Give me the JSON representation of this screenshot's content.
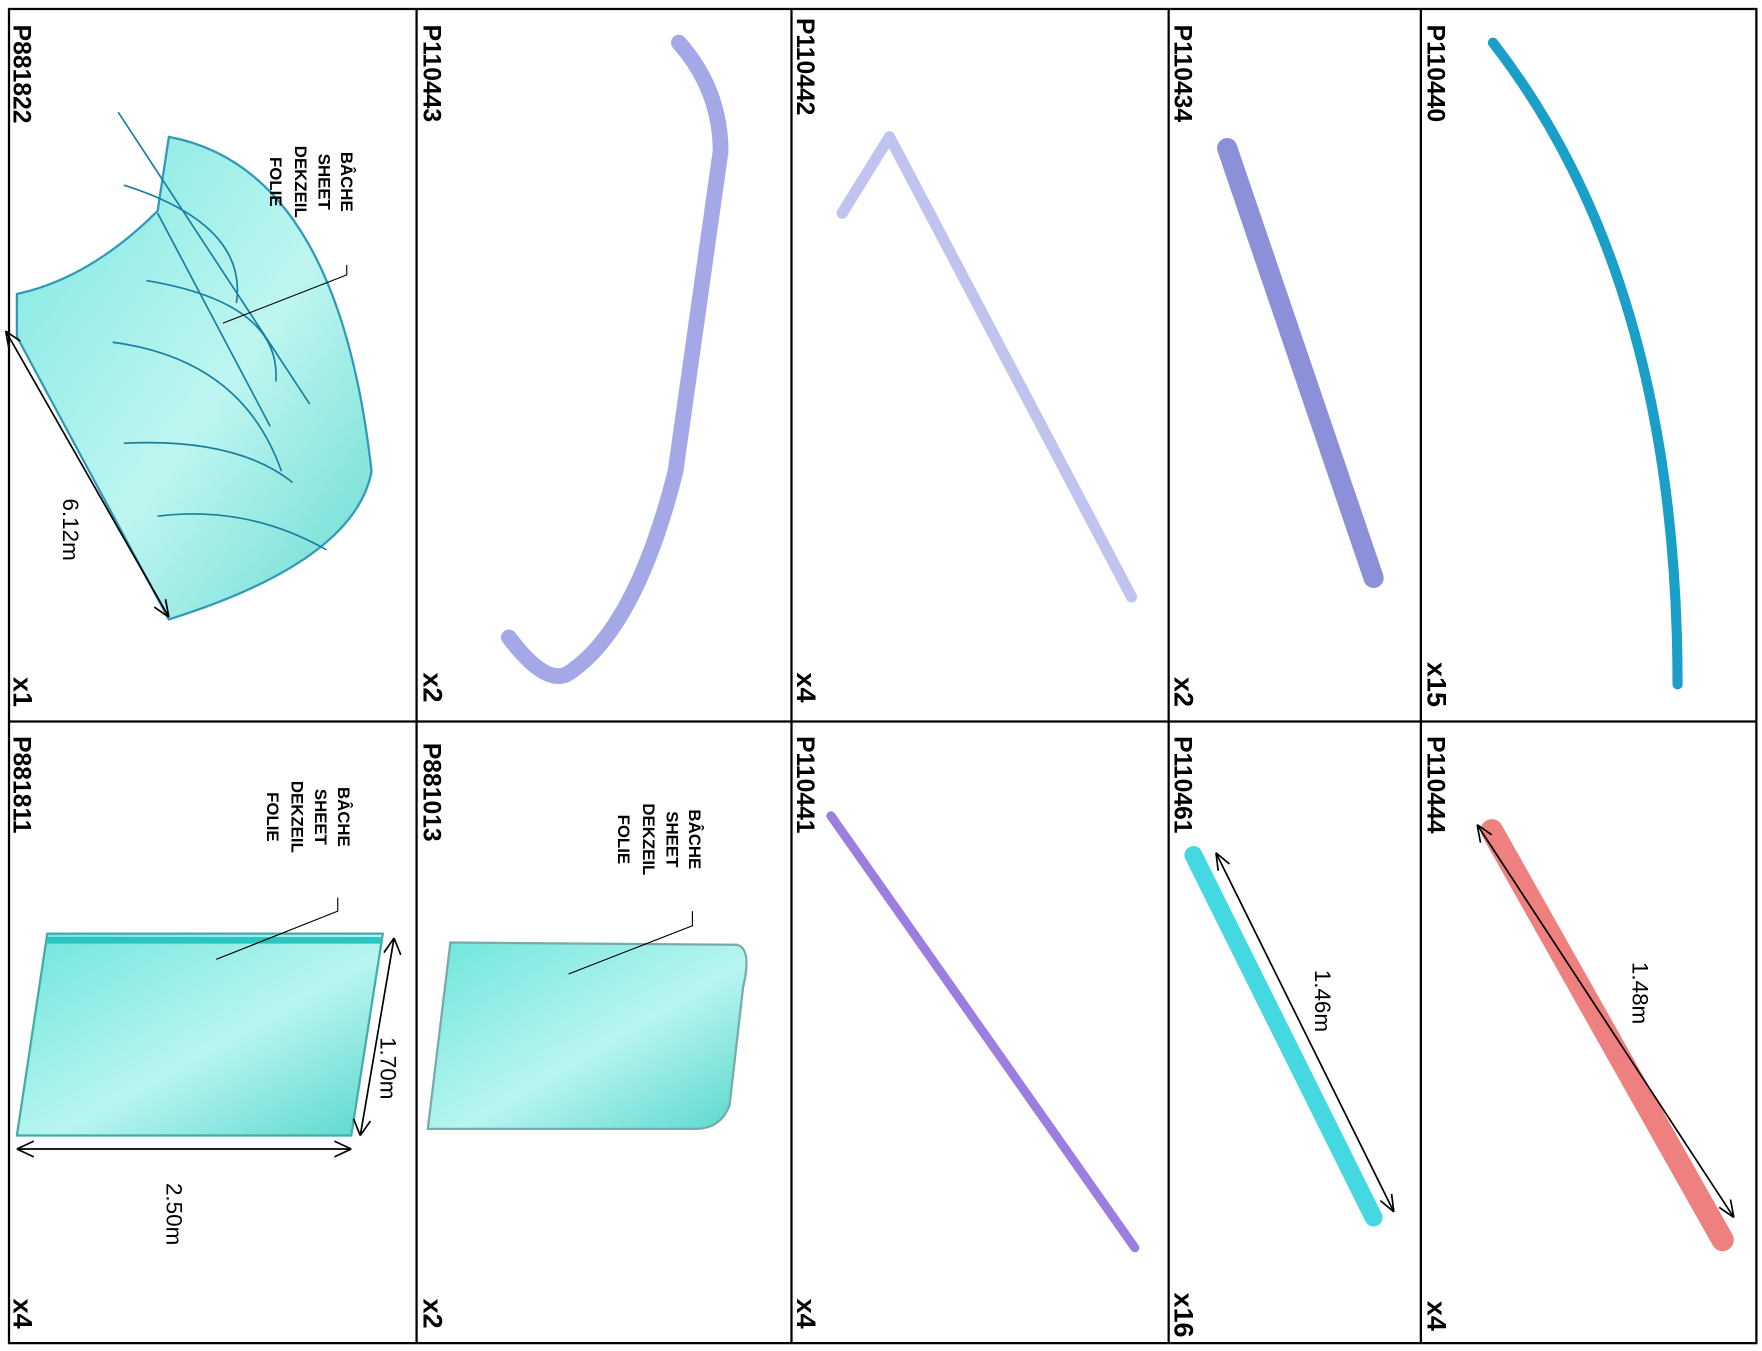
{
  "parts": [
    {
      "code": "P110440",
      "quantity": "x15"
    },
    {
      "code": "P110434",
      "quantity": "x2"
    },
    {
      "code": "P110442",
      "quantity": "x4"
    },
    {
      "code": "P110443",
      "quantity": "x2"
    },
    {
      "code": "P881822",
      "quantity": "x1",
      "dimensions": [
        "6.12m"
      ],
      "label": [
        "BÂCHE",
        "SHEET",
        "DEKZEIL",
        "FOLIE"
      ]
    },
    {
      "code": "P110444",
      "quantity": "x4",
      "dimensions": [
        "1.48m"
      ]
    },
    {
      "code": "P110461",
      "quantity": "x16",
      "dimensions": [
        "1.46m"
      ]
    },
    {
      "code": "P110441",
      "quantity": "x4"
    },
    {
      "code": "P881013",
      "quantity": "x2",
      "label": [
        "BÂCHE",
        "SHEET",
        "DEKZEIL",
        "FOLIE"
      ]
    },
    {
      "code": "P881811",
      "quantity": "x4",
      "dimensions": [
        "1.70m",
        "2.50m"
      ],
      "label": [
        "BÂCHE",
        "SHEET",
        "DEKZEIL",
        "FOLIE"
      ]
    }
  ]
}
